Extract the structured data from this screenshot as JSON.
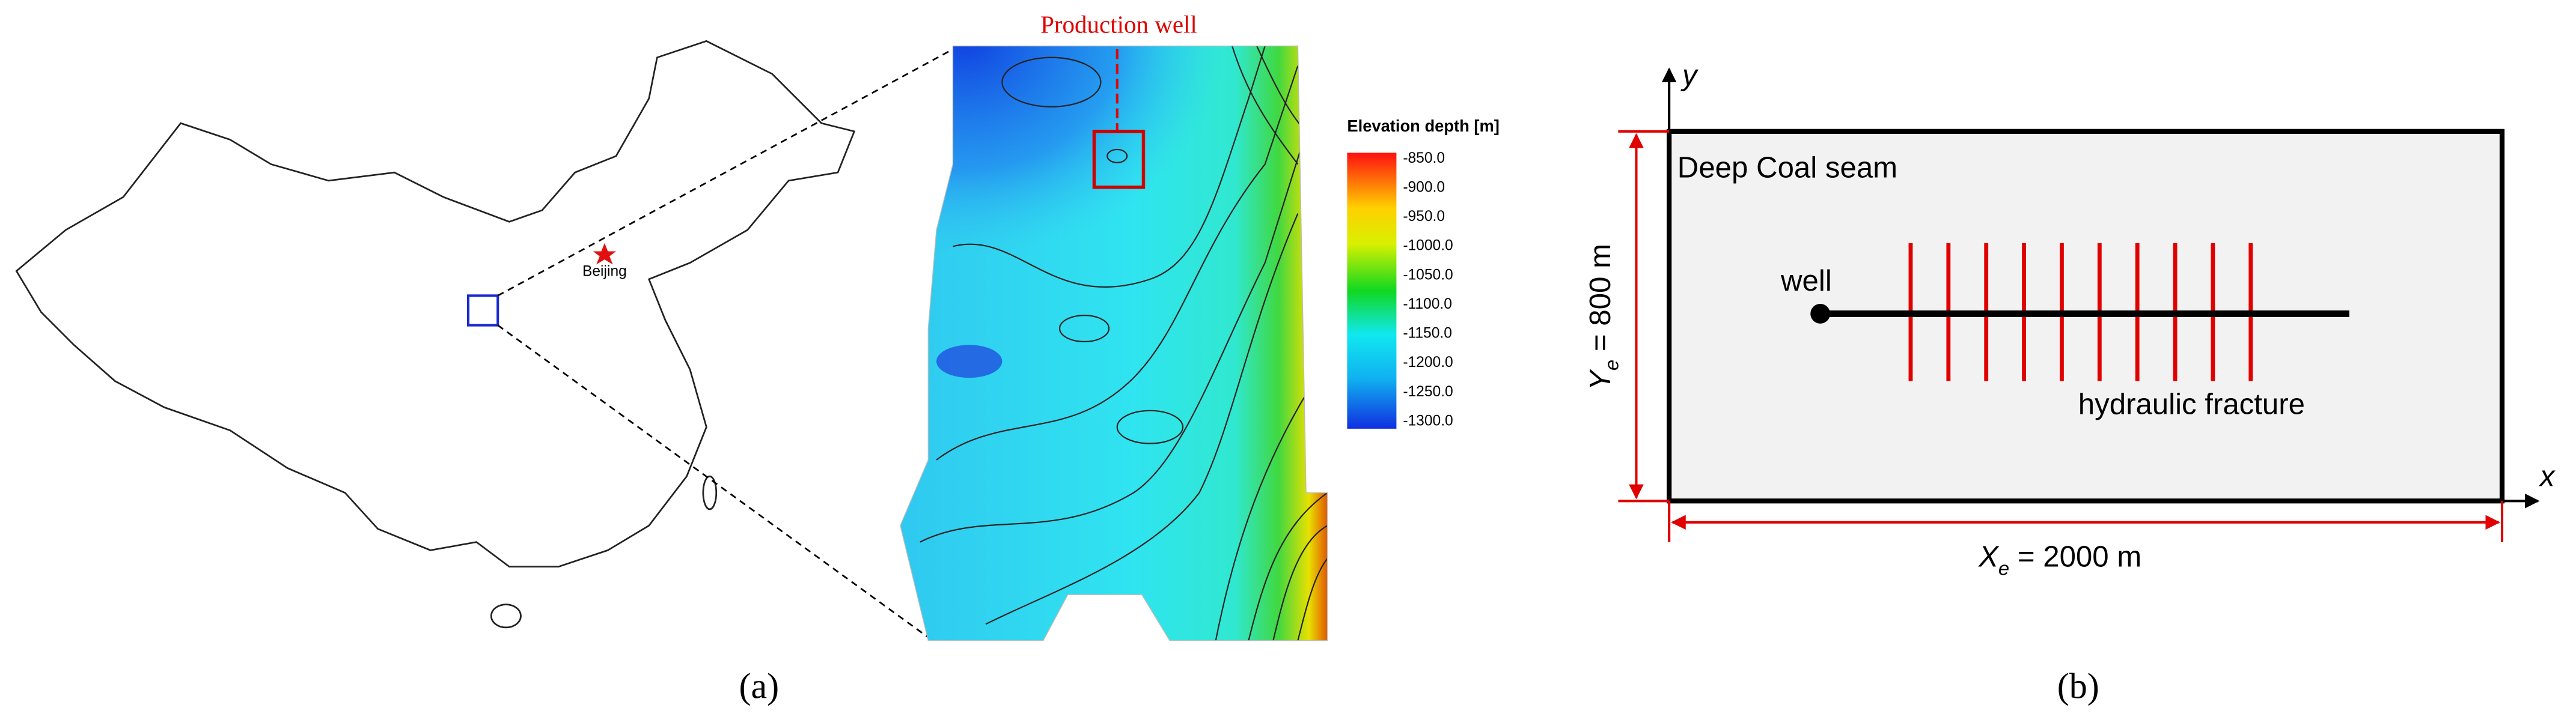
{
  "panel_a": {
    "beijing_label": "Beijing",
    "production_well_label": "Production well",
    "colorbar": {
      "title": "Elevation depth [m]",
      "labels": [
        "-850.0",
        "-900.0",
        "-950.0",
        "-1000.0",
        "-1050.0",
        "-1100.0",
        "-1150.0",
        "-1200.0",
        "-1250.0",
        "-1300.0"
      ]
    },
    "caption": "(a)"
  },
  "panel_b": {
    "y_axis_label": "y",
    "x_axis_label": "x",
    "seam_label": "Deep Coal seam",
    "well_label": "well",
    "fracture_label": "hydraulic fracture",
    "height_dimension": {
      "symbol": "Y",
      "subscript": "e",
      "rest": " = 800 m"
    },
    "width_dimension": {
      "symbol": "X",
      "subscript": "e",
      "rest": " = 2000 m"
    },
    "caption": "(b)"
  }
}
